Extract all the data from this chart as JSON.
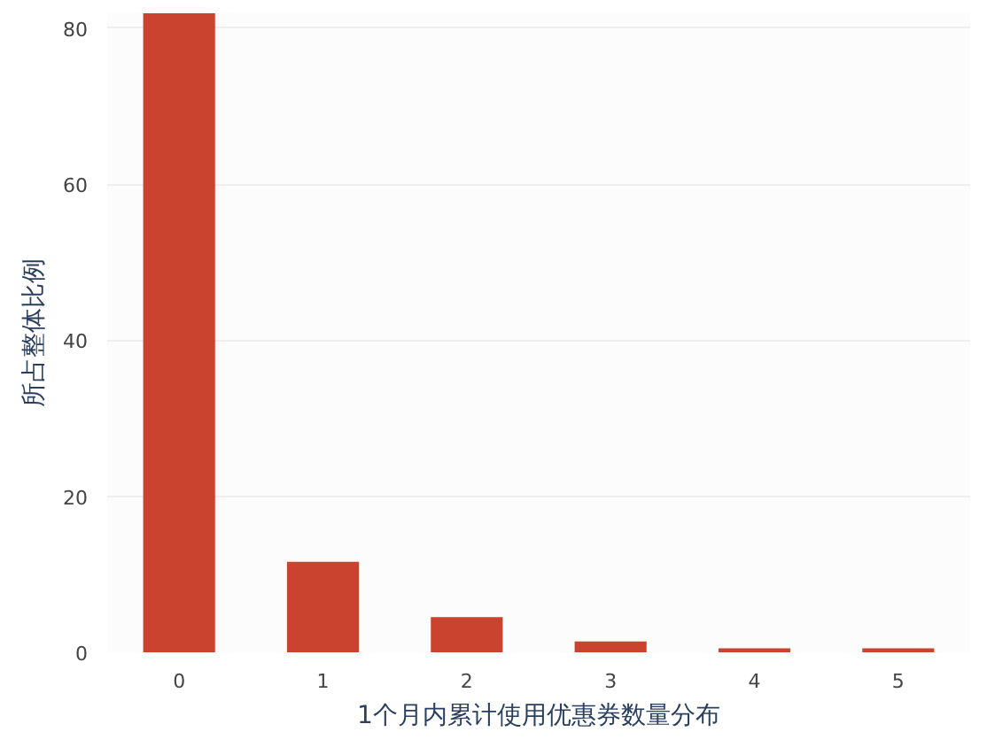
{
  "chart_data": {
    "type": "bar",
    "xlabel": "1个月内累计使用优惠券数量分布",
    "ylabel": "所占整体比例",
    "categories": [
      "0",
      "1",
      "2",
      "3",
      "4",
      "5"
    ],
    "values": [
      81.9,
      11.6,
      4.5,
      1.4,
      0.5,
      0.5
    ],
    "color": "#c9432f",
    "ylim": [
      0,
      81.9
    ],
    "yticks": [
      0,
      20,
      40,
      60,
      80
    ],
    "grid": "y"
  }
}
